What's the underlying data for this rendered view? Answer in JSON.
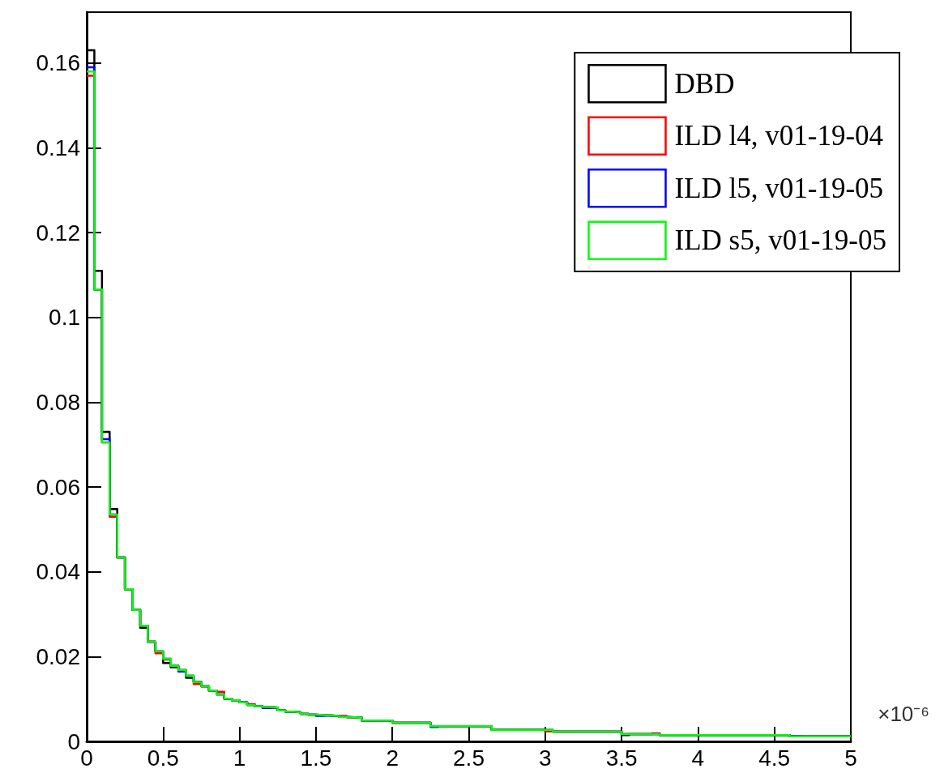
{
  "chart_data": {
    "type": "histogram",
    "bins": [
      0,
      0.05,
      0.1,
      0.15,
      0.2,
      0.25,
      0.3,
      0.35,
      0.4,
      0.45,
      0.5,
      0.55,
      0.6,
      0.65,
      0.7,
      0.75,
      0.8,
      0.85,
      0.9,
      0.95,
      1,
      1.05,
      1.1,
      1.15,
      1.2,
      1.25,
      1.3,
      1.35,
      1.4,
      1.45,
      1.5,
      1.55,
      1.6,
      1.65,
      1.7,
      1.75,
      1.8,
      1.85,
      1.9,
      1.95,
      2,
      2.05,
      2.1,
      2.15,
      2.2,
      2.25,
      2.3,
      2.35,
      2.4,
      2.45,
      2.5,
      2.55,
      2.6,
      2.65,
      2.7,
      2.75,
      2.8,
      2.85,
      2.9,
      2.95,
      3,
      3.05,
      3.1,
      3.15,
      3.2,
      3.25,
      3.3,
      3.35,
      3.4,
      3.45,
      3.5,
      3.55,
      3.6,
      3.65,
      3.7,
      3.75,
      3.8,
      3.85,
      3.9,
      3.95,
      4,
      4.05,
      4.1,
      4.15,
      4.2,
      4.25,
      4.3,
      4.35,
      4.4,
      4.45,
      4.5,
      4.55,
      4.6,
      4.65,
      4.7,
      4.75,
      4.8,
      4.85,
      4.9,
      4.95,
      5
    ],
    "series": [
      {
        "name": "DBD",
        "color": "#000000",
        "values": [
          0.163,
          0.111,
          0.073,
          0.0548,
          0.0434,
          0.0359,
          0.031,
          0.0268,
          0.0235,
          0.0212,
          0.0185,
          0.0175,
          0.0168,
          0.015,
          0.014,
          0.013,
          0.012,
          0.0111,
          0.0101,
          0.0097,
          0.0092,
          0.0086,
          0.0083,
          0.0081,
          0.008,
          0.0073,
          0.007,
          0.0069,
          0.0065,
          0.0063,
          0.0062,
          0.0061,
          0.006,
          0.0058,
          0.0057,
          0.0056,
          0.0049,
          0.0049,
          0.0049,
          0.0049,
          0.0044,
          0.0044,
          0.0044,
          0.0044,
          0.0044,
          0.0036,
          0.0036,
          0.0036,
          0.0036,
          0.0036,
          0.0036,
          0.0036,
          0.0036,
          0.0027,
          0.0027,
          0.0027,
          0.0027,
          0.0027,
          0.0027,
          0.0027,
          0.0025,
          0.0023,
          0.0023,
          0.0023,
          0.0023,
          0.0023,
          0.0023,
          0.0023,
          0.0023,
          0.0023,
          0.0015,
          0.0017,
          0.0017,
          0.0017,
          0.0017,
          0.0015,
          0.0015,
          0.0015,
          0.0015,
          0.0015,
          0.0015,
          0.0015,
          0.0015,
          0.0015,
          0.0015,
          0.0015,
          0.0015,
          0.0015,
          0.0015,
          0.0015,
          0.0015,
          0.0015,
          0.0012,
          0.0012,
          0.0012,
          0.0012,
          0.0012,
          0.0012,
          0.0012,
          0.0012
        ]
      },
      {
        "name": "ILD l4, v01-19-04",
        "color": "#ff0000",
        "values": [
          0.157,
          0.1066,
          0.0705,
          0.053,
          0.0434,
          0.0359,
          0.031,
          0.0273,
          0.0235,
          0.0208,
          0.0193,
          0.0178,
          0.0168,
          0.0155,
          0.0135,
          0.013,
          0.012,
          0.0117,
          0.0101,
          0.0097,
          0.0092,
          0.0088,
          0.0083,
          0.0081,
          0.008,
          0.0073,
          0.007,
          0.0069,
          0.0065,
          0.0063,
          0.0062,
          0.0061,
          0.006,
          0.006,
          0.0057,
          0.0056,
          0.0049,
          0.0049,
          0.0049,
          0.0049,
          0.0044,
          0.0044,
          0.0044,
          0.0044,
          0.0044,
          0.0036,
          0.0036,
          0.0036,
          0.0036,
          0.0036,
          0.0036,
          0.0036,
          0.0036,
          0.0027,
          0.0027,
          0.0027,
          0.0027,
          0.0027,
          0.0027,
          0.0027,
          0.0024,
          0.0023,
          0.0023,
          0.0023,
          0.0023,
          0.0023,
          0.0023,
          0.0023,
          0.0023,
          0.0023,
          0.0017,
          0.0017,
          0.0017,
          0.0017,
          0.0019,
          0.0015,
          0.0015,
          0.0015,
          0.0015,
          0.0015,
          0.0015,
          0.0015,
          0.0015,
          0.0015,
          0.0015,
          0.0015,
          0.0015,
          0.0015,
          0.0015,
          0.0015,
          0.0015,
          0.0015,
          0.0012,
          0.0012,
          0.0012,
          0.0012,
          0.0012,
          0.0012,
          0.0012,
          0.0012
        ]
      },
      {
        "name": "ILD l5, v01-19-05",
        "color": "#0000ff",
        "values": [
          0.159,
          0.1066,
          0.0713,
          0.0535,
          0.0434,
          0.0359,
          0.031,
          0.0273,
          0.0235,
          0.0212,
          0.0195,
          0.0178,
          0.0165,
          0.0155,
          0.014,
          0.013,
          0.012,
          0.0111,
          0.0101,
          0.0097,
          0.0092,
          0.0086,
          0.0083,
          0.0079,
          0.008,
          0.0073,
          0.007,
          0.0069,
          0.0065,
          0.0063,
          0.006,
          0.0061,
          0.006,
          0.0058,
          0.0057,
          0.0056,
          0.0049,
          0.0049,
          0.0049,
          0.0049,
          0.0044,
          0.0044,
          0.0044,
          0.0044,
          0.0044,
          0.0034,
          0.0036,
          0.0036,
          0.0036,
          0.0036,
          0.0036,
          0.0036,
          0.0036,
          0.0027,
          0.0027,
          0.0027,
          0.0027,
          0.0027,
          0.0027,
          0.0027,
          0.0027,
          0.0023,
          0.0023,
          0.0023,
          0.0023,
          0.0023,
          0.0023,
          0.0023,
          0.0023,
          0.0023,
          0.0017,
          0.0017,
          0.0017,
          0.0017,
          0.0017,
          0.0015,
          0.0015,
          0.0015,
          0.0015,
          0.0015,
          0.0015,
          0.0015,
          0.0015,
          0.0015,
          0.0015,
          0.0015,
          0.0015,
          0.0015,
          0.0015,
          0.0015,
          0.0015,
          0.0015,
          0.0013,
          0.0012,
          0.0012,
          0.0012,
          0.0012,
          0.0012,
          0.0012,
          0.0012
        ]
      },
      {
        "name": "ILD s5, v01-19-05",
        "color": "#00ff00",
        "values": [
          0.158,
          0.1066,
          0.0705,
          0.0535,
          0.0434,
          0.0359,
          0.031,
          0.0273,
          0.0235,
          0.0212,
          0.0195,
          0.0178,
          0.0168,
          0.0155,
          0.014,
          0.013,
          0.012,
          0.0111,
          0.0101,
          0.0097,
          0.0092,
          0.0086,
          0.0083,
          0.0081,
          0.008,
          0.0073,
          0.007,
          0.0069,
          0.0065,
          0.0063,
          0.0062,
          0.0061,
          0.006,
          0.0058,
          0.0057,
          0.0056,
          0.0049,
          0.0049,
          0.0049,
          0.0049,
          0.0044,
          0.0044,
          0.0044,
          0.0044,
          0.0044,
          0.0036,
          0.0036,
          0.0036,
          0.0036,
          0.0036,
          0.0036,
          0.0036,
          0.0036,
          0.0027,
          0.0027,
          0.0027,
          0.0027,
          0.0027,
          0.0027,
          0.0027,
          0.0027,
          0.0023,
          0.0023,
          0.0023,
          0.0023,
          0.0023,
          0.0023,
          0.0023,
          0.0023,
          0.0023,
          0.0017,
          0.0017,
          0.0017,
          0.0017,
          0.0017,
          0.0015,
          0.0015,
          0.0015,
          0.0015,
          0.0015,
          0.0015,
          0.0015,
          0.0015,
          0.0015,
          0.0015,
          0.0015,
          0.0015,
          0.0015,
          0.0015,
          0.0015,
          0.0015,
          0.0015,
          0.0012,
          0.0012,
          0.0012,
          0.0012,
          0.0012,
          0.0012,
          0.0012,
          0.0012
        ]
      }
    ],
    "xlim": [
      0,
      5
    ],
    "xticks": [
      0,
      0.5,
      1,
      1.5,
      2,
      2.5,
      3,
      3.5,
      4,
      4.5,
      5
    ],
    "ylim": [
      0,
      0.172
    ],
    "yticks": [
      0,
      0.02,
      0.04,
      0.06,
      0.08,
      0.1,
      0.12,
      0.14,
      0.16
    ],
    "annotations": [
      "×10⁻⁶"
    ],
    "grid": false,
    "legend": "top right"
  }
}
